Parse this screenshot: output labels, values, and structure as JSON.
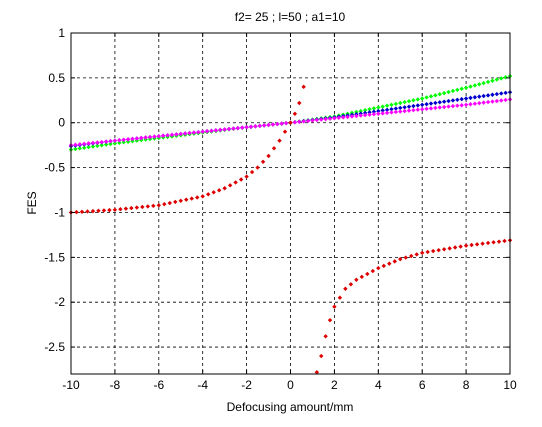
{
  "chart_data": {
    "type": "scatter",
    "title": "f2= 25 ; l=50 ;  a1=10",
    "xlabel": "Defocusing amount/mm",
    "ylabel": "FES",
    "xlim": [
      -10,
      10
    ],
    "ylim": [
      -2.8,
      1.0
    ],
    "xticks": [
      -10,
      -8,
      -6,
      -4,
      -2,
      0,
      2,
      4,
      6,
      8,
      10
    ],
    "yticks": [
      1,
      0.5,
      0,
      -0.5,
      -1,
      -1.5,
      -2,
      -2.5
    ],
    "xtick_labels": [
      "-10",
      "-8",
      "-6",
      "-4",
      "-2",
      "0",
      "2",
      "4",
      "6",
      "8",
      "10"
    ],
    "ytick_labels": [
      "1",
      "0.5",
      "0",
      "-0.5",
      "-1",
      "-1.5",
      "-2",
      "-2.5"
    ],
    "grid": true,
    "legend": "none",
    "series": [
      {
        "color": "#00ff00",
        "description": "linear, slope ~0.04 (green)",
        "x": [
          -10,
          -8,
          -6,
          -4,
          -2,
          0,
          2,
          4,
          6,
          8,
          10
        ],
        "y": [
          -0.3,
          -0.23,
          -0.17,
          -0.11,
          -0.05,
          0.0,
          0.07,
          0.17,
          0.27,
          0.39,
          0.52
        ]
      },
      {
        "color": "#0000cc",
        "description": "linear, slope ~0.03 (blue)",
        "x": [
          -10,
          -8,
          -6,
          -4,
          -2,
          0,
          2,
          4,
          6,
          8,
          10
        ],
        "y": [
          -0.26,
          -0.2,
          -0.15,
          -0.1,
          -0.05,
          0.0,
          0.06,
          0.13,
          0.2,
          0.27,
          0.34
        ]
      },
      {
        "color": "#ff00ff",
        "description": "linear, slope ~0.025 (magenta)",
        "x": [
          -10,
          -8,
          -6,
          -4,
          -2,
          0,
          2,
          4,
          6,
          8,
          10
        ],
        "y": [
          -0.25,
          -0.2,
          -0.15,
          -0.1,
          -0.05,
          0.0,
          0.05,
          0.1,
          0.15,
          0.2,
          0.26
        ]
      },
      {
        "color": "#dd0000",
        "description": "hyperbolic, pole near x=1 (red)",
        "pole": 1.0,
        "x": [
          -10,
          -8,
          -6,
          -4,
          -3,
          -2,
          -1.5,
          -1,
          -0.5,
          0,
          0.2,
          0.4,
          0.6,
          0.8,
          1.2,
          1.4,
          1.6,
          1.8,
          2,
          2.5,
          3,
          4,
          5,
          6,
          8,
          10
        ],
        "y": [
          -1.0,
          -0.97,
          -0.92,
          -0.82,
          -0.73,
          -0.6,
          -0.5,
          -0.37,
          -0.2,
          0.0,
          0.1,
          0.22,
          0.4,
          0.8,
          -2.78,
          -2.6,
          -2.38,
          -2.2,
          -2.05,
          -1.85,
          -1.75,
          -1.62,
          -1.52,
          -1.45,
          -1.37,
          -1.31
        ]
      }
    ]
  }
}
